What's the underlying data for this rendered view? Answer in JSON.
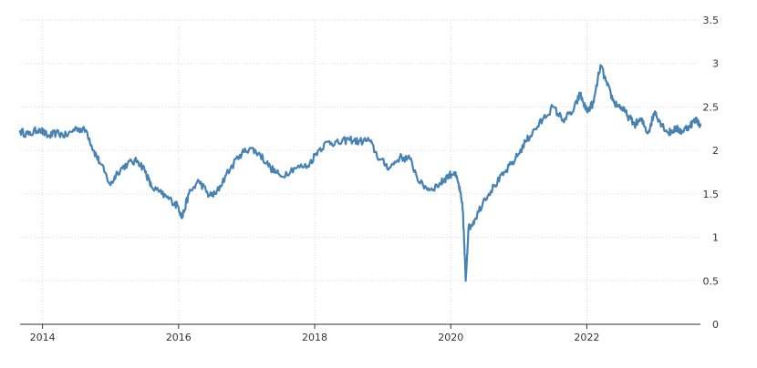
{
  "chart_data": {
    "type": "line",
    "title": "",
    "xlabel": "",
    "ylabel": "",
    "xlim": [
      2013.67,
      2023.67
    ],
    "ylim": [
      0,
      3.5
    ],
    "x_ticks": [
      {
        "value": 2014,
        "label": "2014"
      },
      {
        "value": 2016,
        "label": "2016"
      },
      {
        "value": 2018,
        "label": "2018"
      },
      {
        "value": 2020,
        "label": "2020"
      },
      {
        "value": 2022,
        "label": "2022"
      }
    ],
    "y_ticks": [
      {
        "value": 0,
        "label": "0"
      },
      {
        "value": 0.5,
        "label": "0.5"
      },
      {
        "value": 1,
        "label": "1"
      },
      {
        "value": 1.5,
        "label": "1.5"
      },
      {
        "value": 2,
        "label": "2"
      },
      {
        "value": 2.5,
        "label": "2.5"
      },
      {
        "value": 3,
        "label": "3"
      },
      {
        "value": 3.5,
        "label": "3.5"
      }
    ],
    "y_axis_position": "right",
    "grid": true,
    "legend": "none",
    "series": [
      {
        "color": "#4682b4",
        "x": [
          2013.67,
          2013.8,
          2013.95,
          2014.08,
          2014.2,
          2014.35,
          2014.5,
          2014.65,
          2014.75,
          2014.85,
          2015.0,
          2015.1,
          2015.25,
          2015.4,
          2015.5,
          2015.6,
          2015.75,
          2015.9,
          2016.0,
          2016.05,
          2016.15,
          2016.3,
          2016.45,
          2016.55,
          2016.7,
          2016.9,
          2017.05,
          2017.2,
          2017.35,
          2017.5,
          2017.7,
          2017.9,
          2018.05,
          2018.2,
          2018.35,
          2018.5,
          2018.65,
          2018.8,
          2018.95,
          2019.1,
          2019.25,
          2019.4,
          2019.55,
          2019.7,
          2019.85,
          2019.95,
          2020.05,
          2020.12,
          2020.18,
          2020.22,
          2020.26,
          2020.35,
          2020.5,
          2020.65,
          2020.8,
          2020.95,
          2021.1,
          2021.2,
          2021.35,
          2021.5,
          2021.65,
          2021.8,
          2021.9,
          2022.0,
          2022.1,
          2022.2,
          2022.3,
          2022.4,
          2022.5,
          2022.6,
          2022.7,
          2022.8,
          2022.9,
          2023.0,
          2023.1,
          2023.2,
          2023.3,
          2023.4,
          2023.5,
          2023.6,
          2023.67
        ],
        "values": [
          2.22,
          2.18,
          2.25,
          2.16,
          2.2,
          2.17,
          2.26,
          2.22,
          2.0,
          1.85,
          1.6,
          1.75,
          1.85,
          1.88,
          1.78,
          1.58,
          1.5,
          1.42,
          1.35,
          1.22,
          1.5,
          1.65,
          1.48,
          1.5,
          1.72,
          1.95,
          2.03,
          1.95,
          1.8,
          1.7,
          1.8,
          1.82,
          2.0,
          2.1,
          2.08,
          2.13,
          2.1,
          2.12,
          1.9,
          1.8,
          1.92,
          1.9,
          1.62,
          1.55,
          1.62,
          1.7,
          1.75,
          1.6,
          1.3,
          0.5,
          1.1,
          1.2,
          1.45,
          1.6,
          1.75,
          1.9,
          2.1,
          2.2,
          2.35,
          2.5,
          2.35,
          2.45,
          2.65,
          2.45,
          2.55,
          2.98,
          2.75,
          2.55,
          2.5,
          2.4,
          2.3,
          2.35,
          2.2,
          2.45,
          2.3,
          2.2,
          2.25,
          2.22,
          2.28,
          2.35,
          2.3
        ]
      }
    ]
  }
}
